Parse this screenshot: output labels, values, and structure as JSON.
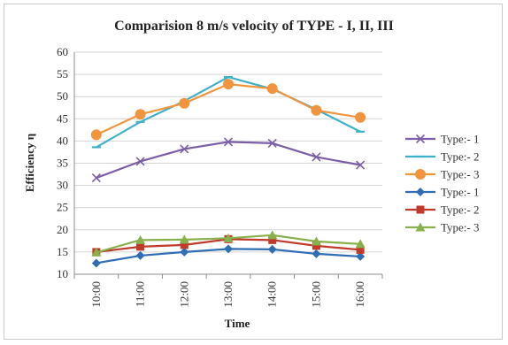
{
  "chart_data": {
    "type": "line",
    "title": "Comparision 8 m/s velocity of TYPE - I, II, III",
    "xlabel": "Time",
    "ylabel": "Efficiency η",
    "categories": [
      "10:00",
      "11:00",
      "12:00",
      "13:00",
      "14:00",
      "15:00",
      "16:00"
    ],
    "ylim": [
      10,
      60
    ],
    "yticks": [
      10,
      15,
      20,
      25,
      30,
      35,
      40,
      45,
      50,
      55,
      60
    ],
    "grid": "horizontal",
    "legend_position": "right",
    "series": [
      {
        "name": "Type:- 1",
        "marker": "x",
        "color": "#7b5ea7",
        "values": [
          31.7,
          35.4,
          38.2,
          39.8,
          39.5,
          36.4,
          34.6
        ]
      },
      {
        "name": "Type:- 2",
        "marker": "dash",
        "color": "#3fb0c9",
        "values": [
          38.6,
          44.3,
          49.0,
          54.4,
          51.7,
          47.1,
          42.1
        ]
      },
      {
        "name": "Type:- 3",
        "marker": "circle",
        "color": "#f0953e",
        "values": [
          41.4,
          46.0,
          48.5,
          52.8,
          51.8,
          46.9,
          45.3
        ]
      },
      {
        "name": "Type:- 1",
        "marker": "diamond",
        "color": "#2f6db5",
        "values": [
          12.5,
          14.2,
          15.0,
          15.7,
          15.6,
          14.6,
          14.0
        ]
      },
      {
        "name": "Type:- 2",
        "marker": "square",
        "color": "#c0392b",
        "values": [
          15.0,
          16.2,
          16.6,
          17.9,
          17.7,
          16.4,
          15.5
        ]
      },
      {
        "name": "Type:- 3",
        "marker": "triangle",
        "color": "#88b04b",
        "values": [
          14.9,
          17.7,
          17.8,
          18.1,
          18.8,
          17.4,
          16.8
        ]
      }
    ]
  }
}
